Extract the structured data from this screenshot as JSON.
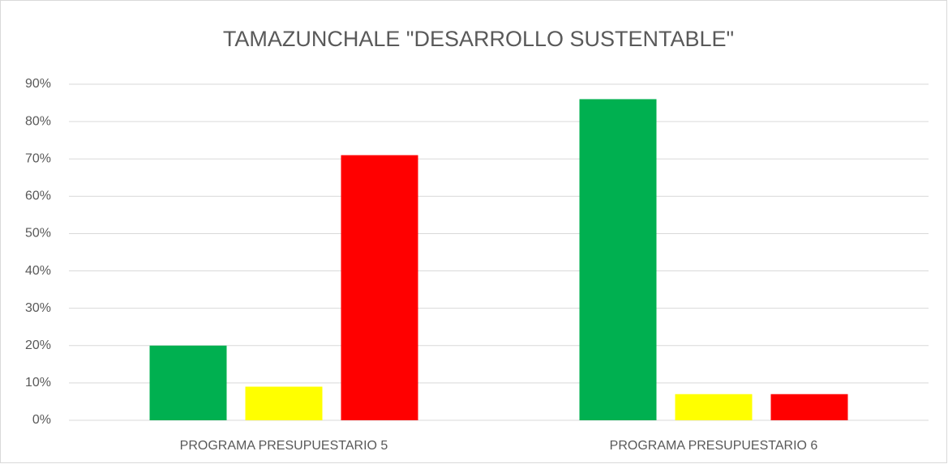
{
  "chart_data": {
    "type": "bar",
    "title": "TAMAZUNCHALE  \"DESARROLLO SUSTENTABLE\"",
    "categories": [
      "PROGRAMA PRESUPUESTARIO 5",
      "PROGRAMA PRESUPUESTARIO 6"
    ],
    "series": [
      {
        "color": "#00b050",
        "values": [
          20,
          86
        ]
      },
      {
        "color": "#ffff00",
        "values": [
          9,
          7
        ]
      },
      {
        "color": "#ff0000",
        "values": [
          71,
          7
        ]
      }
    ],
    "ylim": [
      0,
      90
    ],
    "yticks": [
      {
        "value": 0,
        "label": "0%"
      },
      {
        "value": 10,
        "label": "10%"
      },
      {
        "value": 20,
        "label": "20%"
      },
      {
        "value": 30,
        "label": "30%"
      },
      {
        "value": 40,
        "label": "40%"
      },
      {
        "value": 50,
        "label": "50%"
      },
      {
        "value": 60,
        "label": "60%"
      },
      {
        "value": 70,
        "label": "70%"
      },
      {
        "value": 80,
        "label": "80%"
      },
      {
        "value": 90,
        "label": "90%"
      }
    ],
    "grid": true
  }
}
